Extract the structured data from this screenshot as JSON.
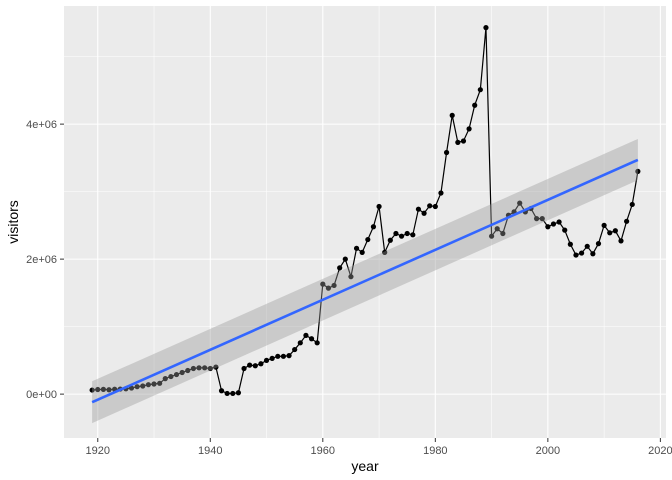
{
  "chart_data": {
    "type": "line",
    "xlabel": "year",
    "ylabel": "visitors",
    "xlim": [
      1914,
      2021
    ],
    "ylim": [
      -650000,
      5750000
    ],
    "x_ticks": [
      1920,
      1940,
      1960,
      1980,
      2000,
      2020
    ],
    "x_tick_labels": [
      "1920",
      "1940",
      "1960",
      "1980",
      "2000",
      "2020"
    ],
    "y_ticks": [
      0,
      2000000,
      4000000
    ],
    "y_tick_labels": [
      "0e+00",
      "2e+06",
      "4e+06"
    ],
    "grid": true,
    "colors": {
      "panel": "#ebebeb",
      "grid": "#ffffff",
      "line": "#000000",
      "point": "#000000",
      "trend": "#3366ff",
      "ribbon": "#999999"
    },
    "series": [
      {
        "x": [
          1919,
          1920,
          1921,
          1922,
          1923,
          1924,
          1925,
          1926,
          1927,
          1928,
          1929,
          1930,
          1931,
          1932,
          1933,
          1934,
          1935,
          1936,
          1937,
          1938,
          1939,
          1940,
          1941,
          1942,
          1943,
          1944,
          1945,
          1946,
          1947,
          1948,
          1949,
          1950,
          1951,
          1952,
          1953,
          1954,
          1955,
          1956,
          1957,
          1958,
          1959,
          1960,
          1961,
          1962,
          1963,
          1964,
          1965,
          1966,
          1967,
          1968,
          1969,
          1970,
          1971,
          1972,
          1973,
          1974,
          1975,
          1976,
          1977,
          1978,
          1979,
          1980,
          1981,
          1982,
          1983,
          1984,
          1985,
          1986,
          1987,
          1988,
          1989,
          1990,
          1991,
          1992,
          1993,
          1994,
          1995,
          1996,
          1997,
          1998,
          1999,
          2000,
          2001,
          2002,
          2003,
          2004,
          2005,
          2006,
          2007,
          2008,
          2009,
          2010,
          2011,
          2012,
          2013,
          2014,
          2015,
          2016
        ],
        "values": [
          60000,
          68000,
          70000,
          65000,
          72000,
          75000,
          80000,
          90000,
          110000,
          120000,
          140000,
          150000,
          160000,
          230000,
          260000,
          290000,
          320000,
          350000,
          380000,
          390000,
          390000,
          380000,
          400000,
          50000,
          10000,
          10000,
          20000,
          380000,
          430000,
          420000,
          450000,
          500000,
          530000,
          560000,
          560000,
          570000,
          660000,
          760000,
          870000,
          820000,
          760000,
          1630000,
          1570000,
          1610000,
          1870000,
          2000000,
          1740000,
          2160000,
          2100000,
          2290000,
          2480000,
          2780000,
          2100000,
          2280000,
          2380000,
          2340000,
          2380000,
          2360000,
          2740000,
          2680000,
          2790000,
          2780000,
          2980000,
          3580000,
          4130000,
          3730000,
          3750000,
          3930000,
          4280000,
          4510000,
          5430000,
          2340000,
          2450000,
          2380000,
          2650000,
          2700000,
          2830000,
          2700000,
          2750000,
          2600000,
          2600000,
          2480000,
          2520000,
          2550000,
          2430000,
          2220000,
          2060000,
          2090000,
          2190000,
          2080000,
          2230000,
          2500000,
          2390000,
          2420000,
          2270000,
          2560000,
          2810000,
          3300000
        ]
      }
    ],
    "trend": {
      "x": [
        1919,
        2016
      ],
      "y": [
        -120000,
        3470000
      ],
      "lower": [
        -430000,
        3170000
      ],
      "upper": [
        190000,
        3780000
      ]
    }
  }
}
